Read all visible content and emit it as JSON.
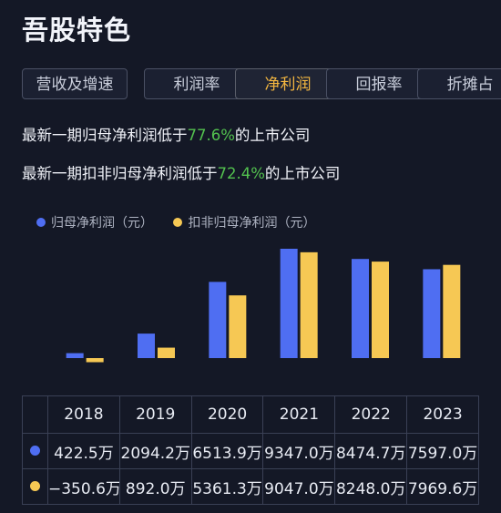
{
  "page": {
    "title": "吾股特色"
  },
  "tabs": [
    {
      "label": "营收及增速",
      "active": false
    },
    {
      "label": "利润率",
      "active": false
    },
    {
      "label": "净利润",
      "active": true
    },
    {
      "label": "回报率",
      "active": false
    },
    {
      "label": "折摊占",
      "active": false
    }
  ],
  "stats": {
    "line1_prefix": "最新一期归母净利润低于",
    "line1_pct": "77.6%",
    "line1_suffix": "的上市公司",
    "line2_prefix": "最新一期扣非归母净利润低于",
    "line2_pct": "72.4%",
    "line2_suffix": "的上市公司"
  },
  "colors": {
    "blue": "#4f6ef2",
    "yellow": "#f6c854",
    "green": "#53c24f",
    "accent": "#f4b740"
  },
  "chart_data": {
    "type": "bar",
    "categories": [
      "2018",
      "2019",
      "2020",
      "2021",
      "2022",
      "2023"
    ],
    "series": [
      {
        "name": "归母净利润（元）",
        "values": [
          422.5,
          2094.2,
          6513.9,
          9347.0,
          8474.7,
          7597.0
        ],
        "labels": [
          "422.5万",
          "2094.2万",
          "6513.9万",
          "9347.0万",
          "8474.7万",
          "7597.0万"
        ],
        "color": "#4f6ef2"
      },
      {
        "name": "扣非归母净利润（元）",
        "values": [
          -350.6,
          892.0,
          5361.3,
          9047.0,
          8248.0,
          7969.6
        ],
        "labels": [
          "−350.6万",
          "892.0万",
          "5361.3万",
          "9047.0万",
          "8248.0万",
          "7969.6万"
        ],
        "color": "#f6c854"
      }
    ]
  }
}
